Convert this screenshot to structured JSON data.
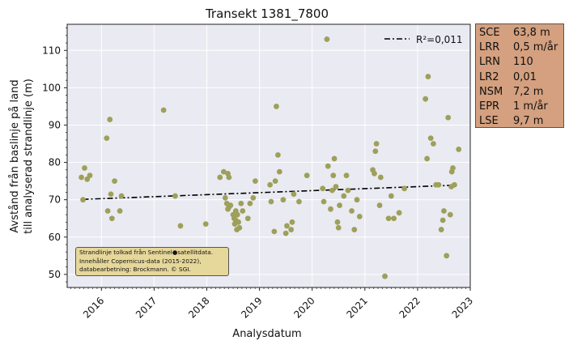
{
  "chart_data": {
    "type": "scatter",
    "title": "Transekt 1381_7800",
    "xlabel": "Analysdatum",
    "ylabel_line1": "Avstånd från baslinje på land",
    "ylabel_line2": "till analyserad strandlinje (m)",
    "xlim": [
      2015.35,
      2023.0
    ],
    "ylim": [
      46.5,
      117
    ],
    "x_ticks": [
      2016,
      2017,
      2018,
      2019,
      2020,
      2021,
      2022,
      2023
    ],
    "x_tick_labels": [
      "2016",
      "2017",
      "2018",
      "2019",
      "2020",
      "2021",
      "2022",
      "2023"
    ],
    "y_ticks": [
      50,
      60,
      70,
      80,
      90,
      100,
      110
    ],
    "y_tick_labels": [
      "50",
      "60",
      "70",
      "80",
      "90",
      "100",
      "110"
    ],
    "grid": true,
    "legend": {
      "position": "top-right",
      "entries": [
        {
          "label": "R²=0,011",
          "style": "dash-dot"
        }
      ]
    },
    "trend": {
      "x": [
        2015.65,
        2022.72
      ],
      "y": [
        70.1,
        73.9
      ]
    },
    "points": [
      [
        2015.62,
        76
      ],
      [
        2015.65,
        70
      ],
      [
        2015.68,
        78.5
      ],
      [
        2015.73,
        75.5
      ],
      [
        2015.78,
        76.5
      ],
      [
        2016.1,
        86.5
      ],
      [
        2016.12,
        67
      ],
      [
        2016.16,
        91.5
      ],
      [
        2016.18,
        71.5
      ],
      [
        2016.2,
        65
      ],
      [
        2016.25,
        75
      ],
      [
        2016.35,
        67
      ],
      [
        2016.38,
        71
      ],
      [
        2017.18,
        94
      ],
      [
        2017.4,
        71
      ],
      [
        2017.5,
        63
      ],
      [
        2017.98,
        63.5
      ],
      [
        2018.25,
        76
      ],
      [
        2018.32,
        77.5
      ],
      [
        2018.35,
        70.5
      ],
      [
        2018.38,
        69
      ],
      [
        2018.4,
        77
      ],
      [
        2018.42,
        76
      ],
      [
        2018.4,
        67.5
      ],
      [
        2018.42,
        68
      ],
      [
        2018.45,
        68.5
      ],
      [
        2018.5,
        66
      ],
      [
        2018.52,
        65
      ],
      [
        2018.53,
        63.5
      ],
      [
        2018.55,
        64.5
      ],
      [
        2018.55,
        67
      ],
      [
        2018.57,
        62
      ],
      [
        2018.58,
        66
      ],
      [
        2018.6,
        64
      ],
      [
        2018.62,
        62.5
      ],
      [
        2018.65,
        69
      ],
      [
        2018.68,
        67
      ],
      [
        2018.78,
        65
      ],
      [
        2018.82,
        69
      ],
      [
        2018.88,
        70.5
      ],
      [
        2018.92,
        75
      ],
      [
        2019.2,
        74
      ],
      [
        2019.22,
        69.5
      ],
      [
        2019.28,
        61.5
      ],
      [
        2019.3,
        75
      ],
      [
        2019.32,
        95
      ],
      [
        2019.35,
        82
      ],
      [
        2019.38,
        77.5
      ],
      [
        2019.45,
        70
      ],
      [
        2019.5,
        61
      ],
      [
        2019.52,
        63
      ],
      [
        2019.6,
        62
      ],
      [
        2019.62,
        64
      ],
      [
        2019.65,
        71.5
      ],
      [
        2019.75,
        69.5
      ],
      [
        2019.9,
        76.5
      ],
      [
        2020.2,
        73
      ],
      [
        2020.22,
        69.5
      ],
      [
        2020.28,
        113
      ],
      [
        2020.3,
        79
      ],
      [
        2020.35,
        67.5
      ],
      [
        2020.38,
        72.5
      ],
      [
        2020.4,
        76.5
      ],
      [
        2020.42,
        81
      ],
      [
        2020.45,
        73.5
      ],
      [
        2020.48,
        64
      ],
      [
        2020.5,
        62.5
      ],
      [
        2020.52,
        68.5
      ],
      [
        2020.6,
        71
      ],
      [
        2020.65,
        76.5
      ],
      [
        2020.68,
        72.5
      ],
      [
        2020.75,
        67
      ],
      [
        2020.8,
        62
      ],
      [
        2020.85,
        70
      ],
      [
        2020.9,
        65.5
      ],
      [
        2021.15,
        78
      ],
      [
        2021.18,
        77
      ],
      [
        2021.2,
        83
      ],
      [
        2021.22,
        85
      ],
      [
        2021.28,
        68.5
      ],
      [
        2021.3,
        76
      ],
      [
        2021.38,
        49.5
      ],
      [
        2021.45,
        65
      ],
      [
        2021.5,
        71
      ],
      [
        2021.55,
        65
      ],
      [
        2021.65,
        66.5
      ],
      [
        2021.75,
        73
      ],
      [
        2022.15,
        97
      ],
      [
        2022.18,
        81
      ],
      [
        2022.2,
        103
      ],
      [
        2022.25,
        86.5
      ],
      [
        2022.3,
        85
      ],
      [
        2022.35,
        74
      ],
      [
        2022.4,
        74
      ],
      [
        2022.45,
        62
      ],
      [
        2022.48,
        64.5
      ],
      [
        2022.5,
        67
      ],
      [
        2022.55,
        55
      ],
      [
        2022.58,
        92
      ],
      [
        2022.62,
        66
      ],
      [
        2022.64,
        73.5
      ],
      [
        2022.65,
        77.5
      ],
      [
        2022.67,
        78.5
      ],
      [
        2022.7,
        74
      ],
      [
        2022.78,
        83.5
      ]
    ]
  },
  "stats": [
    {
      "key": "SCE",
      "value": "63,8 m"
    },
    {
      "key": "LRR",
      "value": "0,5 m/år"
    },
    {
      "key": "LRN",
      "value": "110"
    },
    {
      "key": "LR2",
      "value": "0,01"
    },
    {
      "key": "NSM",
      "value": "7,2 m"
    },
    {
      "key": "EPR",
      "value": "1 m/år"
    },
    {
      "key": "LSE",
      "value": "9,7 m"
    }
  ],
  "credit": {
    "line1": "Strandlinje tolkad från Sentinel●satellitdata.",
    "line2": "Innehåller Copernicus-data (2015-2022),",
    "line3": "databearbetning: Brockmann. © SGI."
  },
  "colors": {
    "plot_background": "#eaeaf2",
    "grid": "#ffffff",
    "point": "#9ea05a",
    "trend": "#000000",
    "stats_box": "#d4a07f",
    "credit_box": "#e6d79a"
  }
}
